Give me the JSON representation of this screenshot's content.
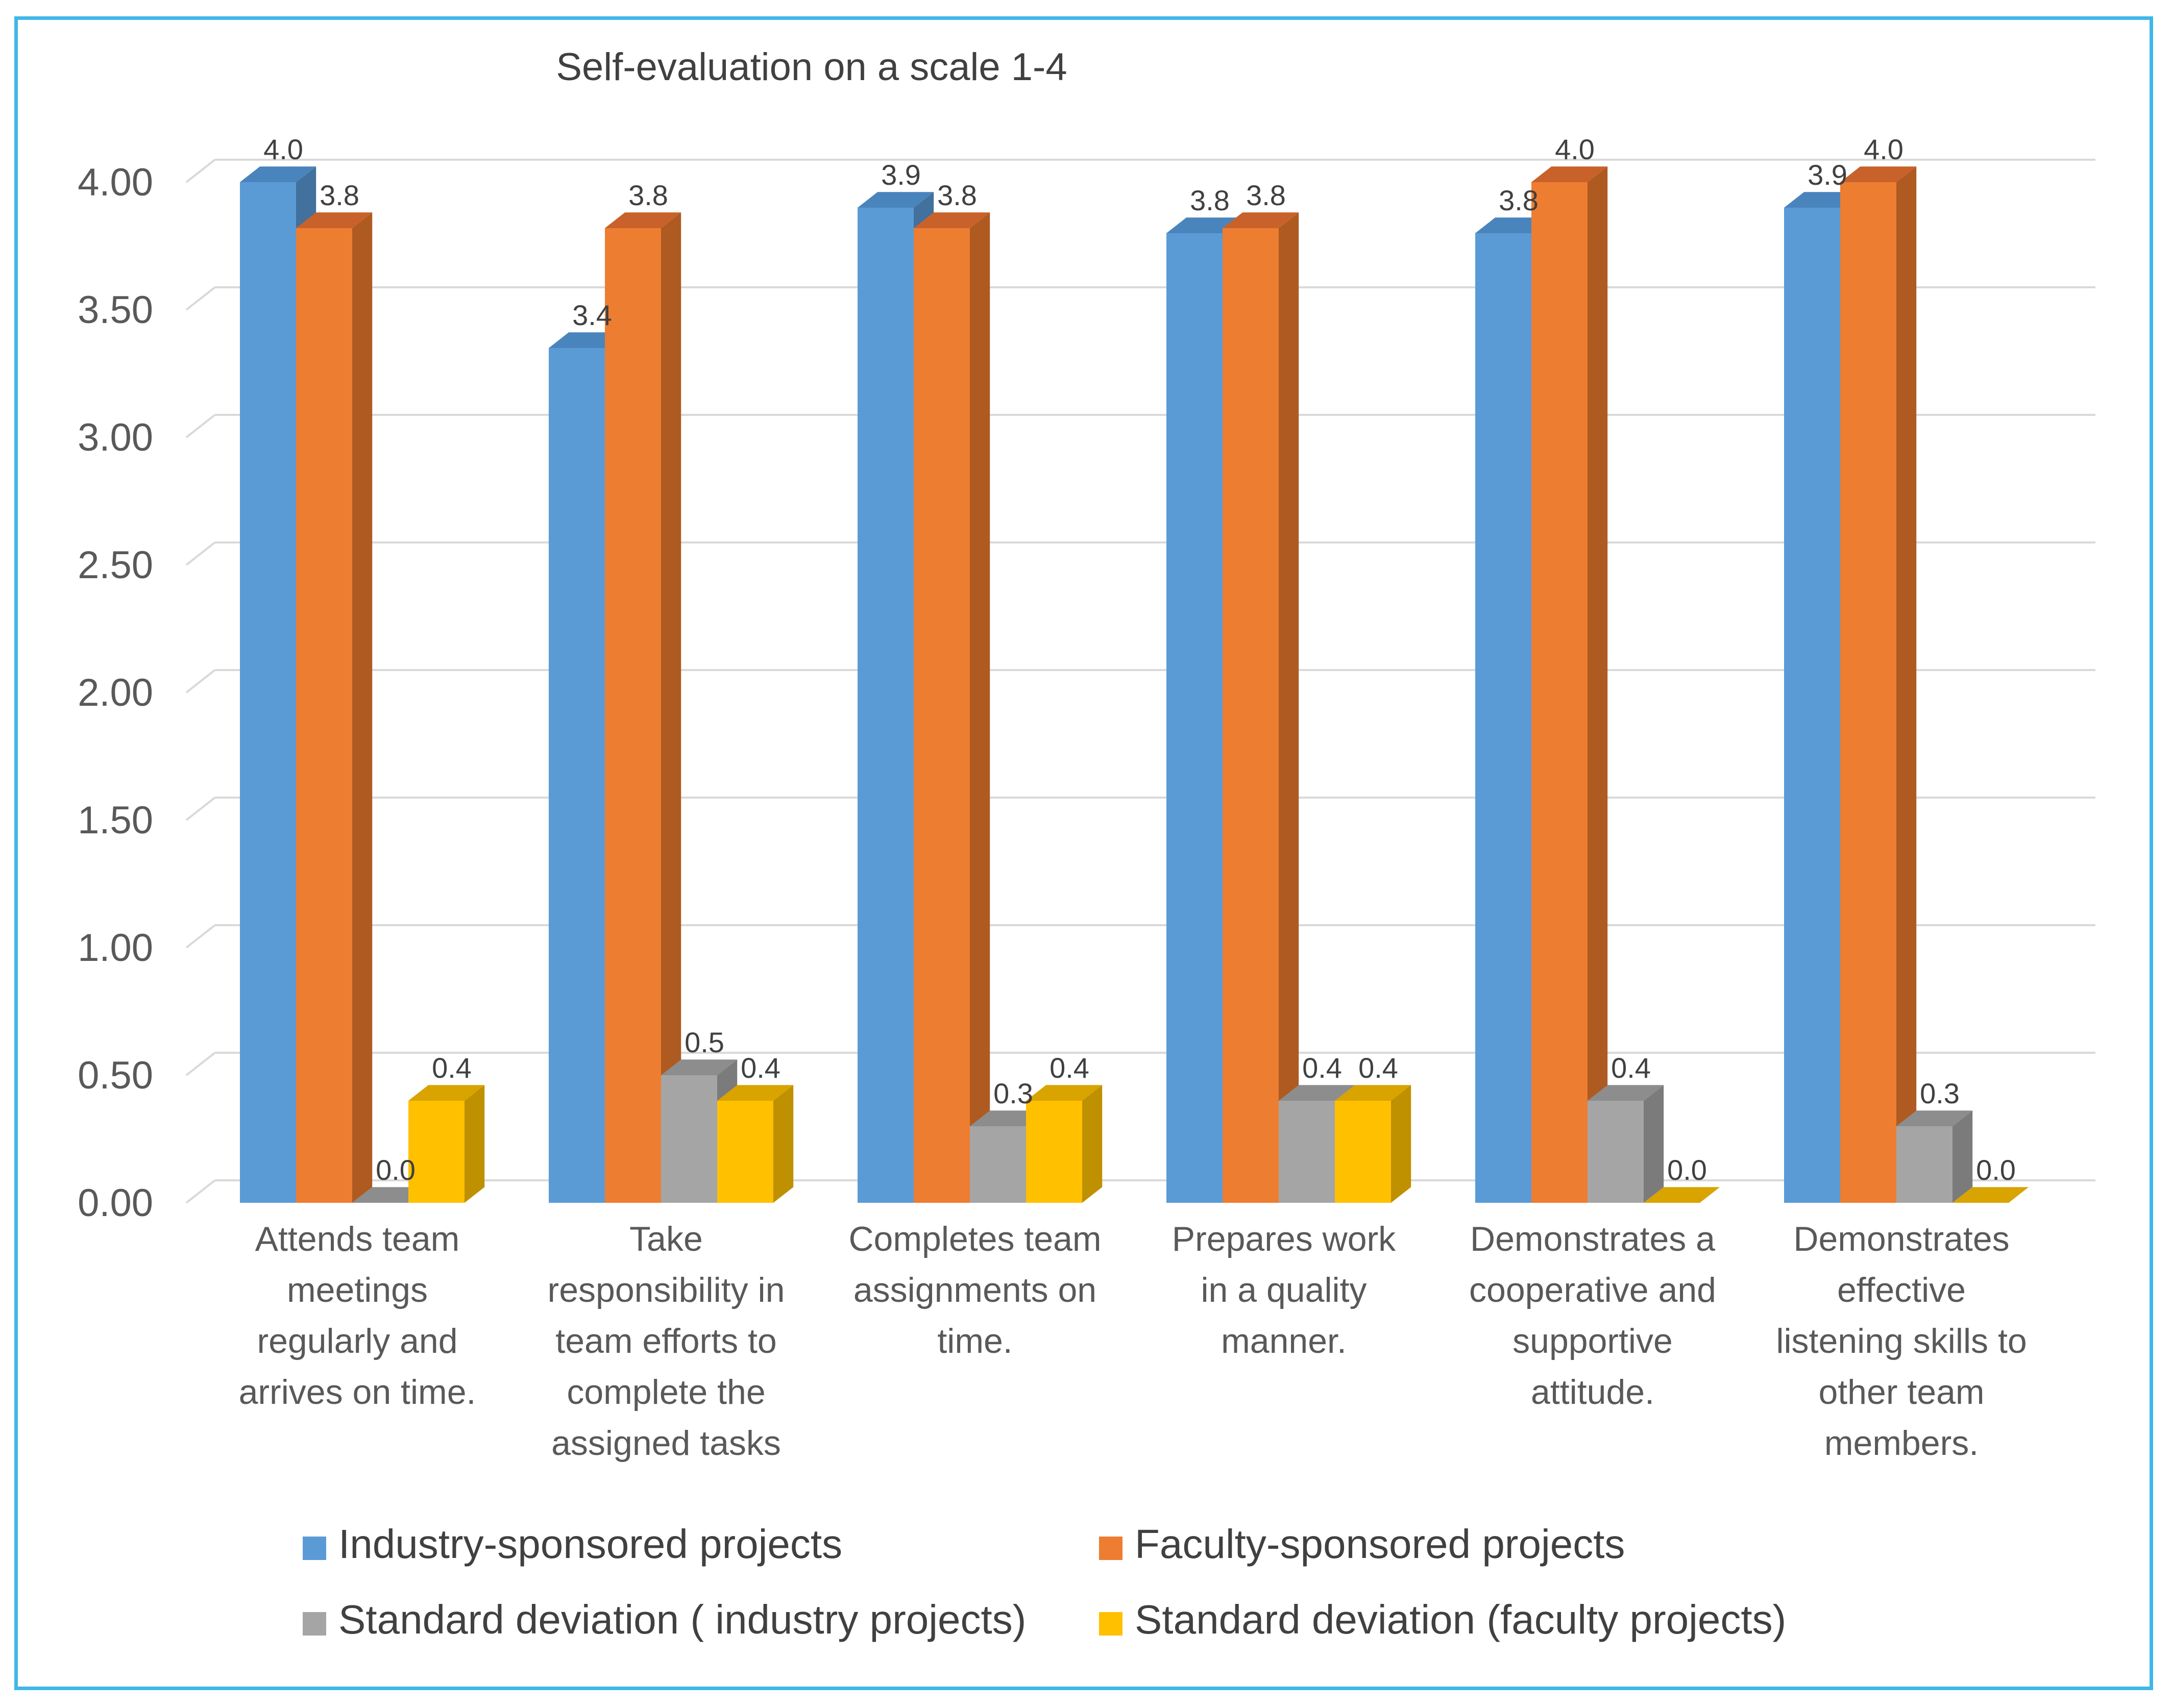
{
  "chart_data": {
    "type": "bar",
    "title": "Self-evaluation on a scale 1-4",
    "xlabel": "",
    "ylabel": "",
    "ylim": [
      0,
      4
    ],
    "yticks": [
      0,
      0.5,
      1,
      1.5,
      2,
      2.5,
      3,
      3.5,
      4
    ],
    "ytick_labels": [
      "0.00",
      "0.50",
      "1.00",
      "1.50",
      "2.00",
      "2.50",
      "3.00",
      "3.50",
      "4.00"
    ],
    "grid": true,
    "legend_position": "bottom",
    "categories": [
      [
        "Attends team",
        "meetings",
        "regularly and",
        "arrives on time."
      ],
      [
        "Take",
        "responsibility  in",
        "team efforts to",
        "complete the",
        "assigned tasks"
      ],
      [
        "Completes team",
        "assignments on",
        "time."
      ],
      [
        "Prepares work",
        "in a quality",
        "manner."
      ],
      [
        "Demonstrates a",
        "cooperative and",
        "supportive",
        "attitude."
      ],
      [
        "Demonstrates",
        "effective",
        "listening skills to",
        "other team",
        "members."
      ]
    ],
    "series": [
      {
        "name": "Industry-sponsored projects",
        "color": "#5b9bd5",
        "side": "#41719c",
        "top": "#4a84bd",
        "values": [
          4.0,
          3.35,
          3.9,
          3.8,
          3.8,
          3.9
        ],
        "labels": [
          "4.0",
          "3.4",
          "3.9",
          "3.8",
          "3.8",
          "3.9"
        ]
      },
      {
        "name": "Faculty-sponsored projects",
        "color": "#ed7d31",
        "side": "#ae5a21",
        "top": "#c8622a",
        "values": [
          3.82,
          3.82,
          3.82,
          3.82,
          4.0,
          4.0
        ],
        "labels": [
          "3.8",
          "3.8",
          "3.8",
          "3.8",
          "4.0",
          "4.0"
        ]
      },
      {
        "name": "Standard deviation ( industry projects)",
        "color": "#a5a5a5",
        "side": "#7b7b7b",
        "top": "#8d8d8d",
        "values": [
          0.0,
          0.5,
          0.3,
          0.4,
          0.4,
          0.3
        ],
        "labels": [
          "0.0",
          "0.5",
          "0.3",
          "0.4",
          "0.4",
          "0.3"
        ]
      },
      {
        "name": "Standard deviation (faculty projects)",
        "color": "#ffc000",
        "side": "#bf9000",
        "top": "#d9a300",
        "values": [
          0.4,
          0.4,
          0.4,
          0.4,
          0.0,
          0.0
        ],
        "labels": [
          "0.4",
          "0.4",
          "0.4",
          "0.4",
          "0.0",
          "0.0"
        ]
      }
    ]
  }
}
